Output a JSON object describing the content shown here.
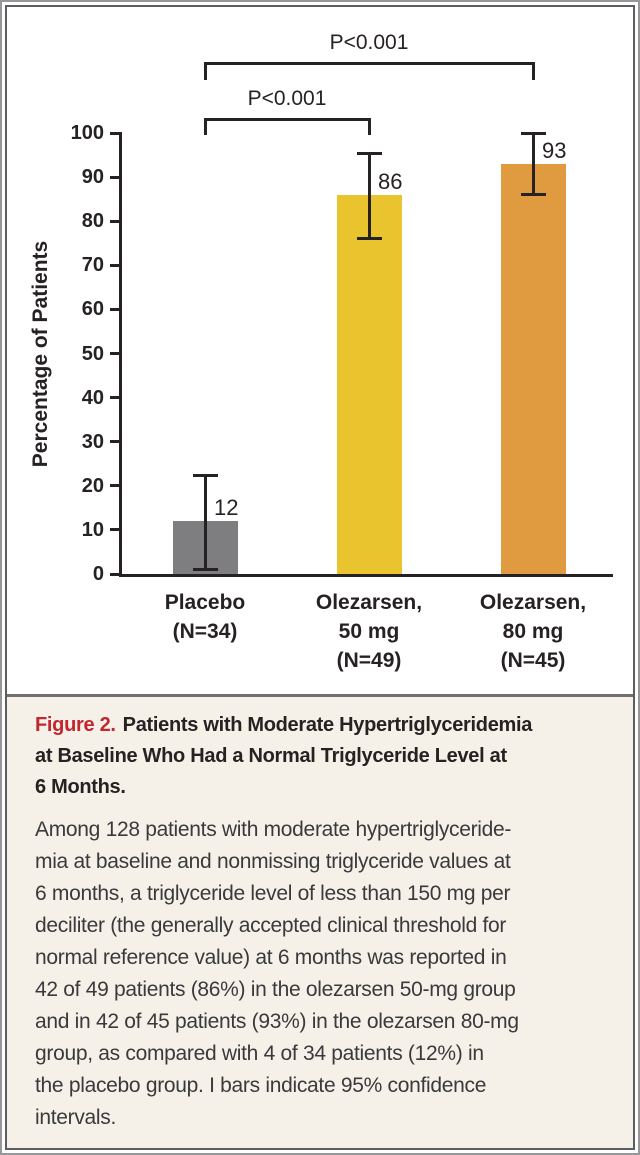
{
  "colors": {
    "frame_outer": "#97979A",
    "frame_inner": "#5E5E62",
    "divider": "#6F6F72",
    "caption_bg": "#F5F1E8",
    "figure_red": "#C2262E",
    "title_ink": "#272122",
    "body_ink": "#3A3A3C",
    "chart_ink": "#262223"
  },
  "chart_data": {
    "type": "bar",
    "title": "",
    "xlabel": "",
    "ylabel": "Percentage of Patients",
    "ylim": [
      0,
      100
    ],
    "yticks": [
      0,
      10,
      20,
      30,
      40,
      50,
      60,
      70,
      80,
      90,
      100
    ],
    "grid": false,
    "categories": [
      [
        "Placebo",
        "(N=34)"
      ],
      [
        "Olezarsen,",
        "50 mg",
        "(N=49)"
      ],
      [
        "Olezarsen,",
        "80 mg",
        "(N=45)"
      ]
    ],
    "values": [
      12,
      86,
      93
    ],
    "value_labels": [
      "12",
      "86",
      "93"
    ],
    "ci_95": [
      [
        1,
        22.5
      ],
      [
        76,
        95.5
      ],
      [
        86,
        100
      ]
    ],
    "bar_colors": [
      "#7E7E81",
      "#E9C42E",
      "#E09A3F"
    ],
    "error_bar_note": "I bars indicate 95% confidence intervals",
    "significance_brackets": [
      {
        "label": "P<0.001",
        "from": 0,
        "to": 1
      },
      {
        "label": "P<0.001",
        "from": 0,
        "to": 2
      }
    ]
  },
  "caption": {
    "figure_label": "Figure 2.",
    "title": "Patients with Moderate Hypertriglyceridemia\nat Baseline Who Had a Normal Triglyceride Level at\n6 Months.",
    "body": "Among 128 patients with moderate hypertriglyceride-\nmia at baseline and nonmissing triglyceride values at\n6 months, a triglyceride level of less than 150 mg per\ndeciliter (the generally accepted clinical threshold for\nnormal reference value) at 6 months was reported in\n42 of 49 patients (86%) in the olezarsen 50-mg group\nand in 42 of 45 patients (93%) in the olezarsen 80-mg\ngroup, as compared with 4 of 34 patients (12%) in\nthe placebo group. I bars indicate 95% confidence\nintervals."
  }
}
